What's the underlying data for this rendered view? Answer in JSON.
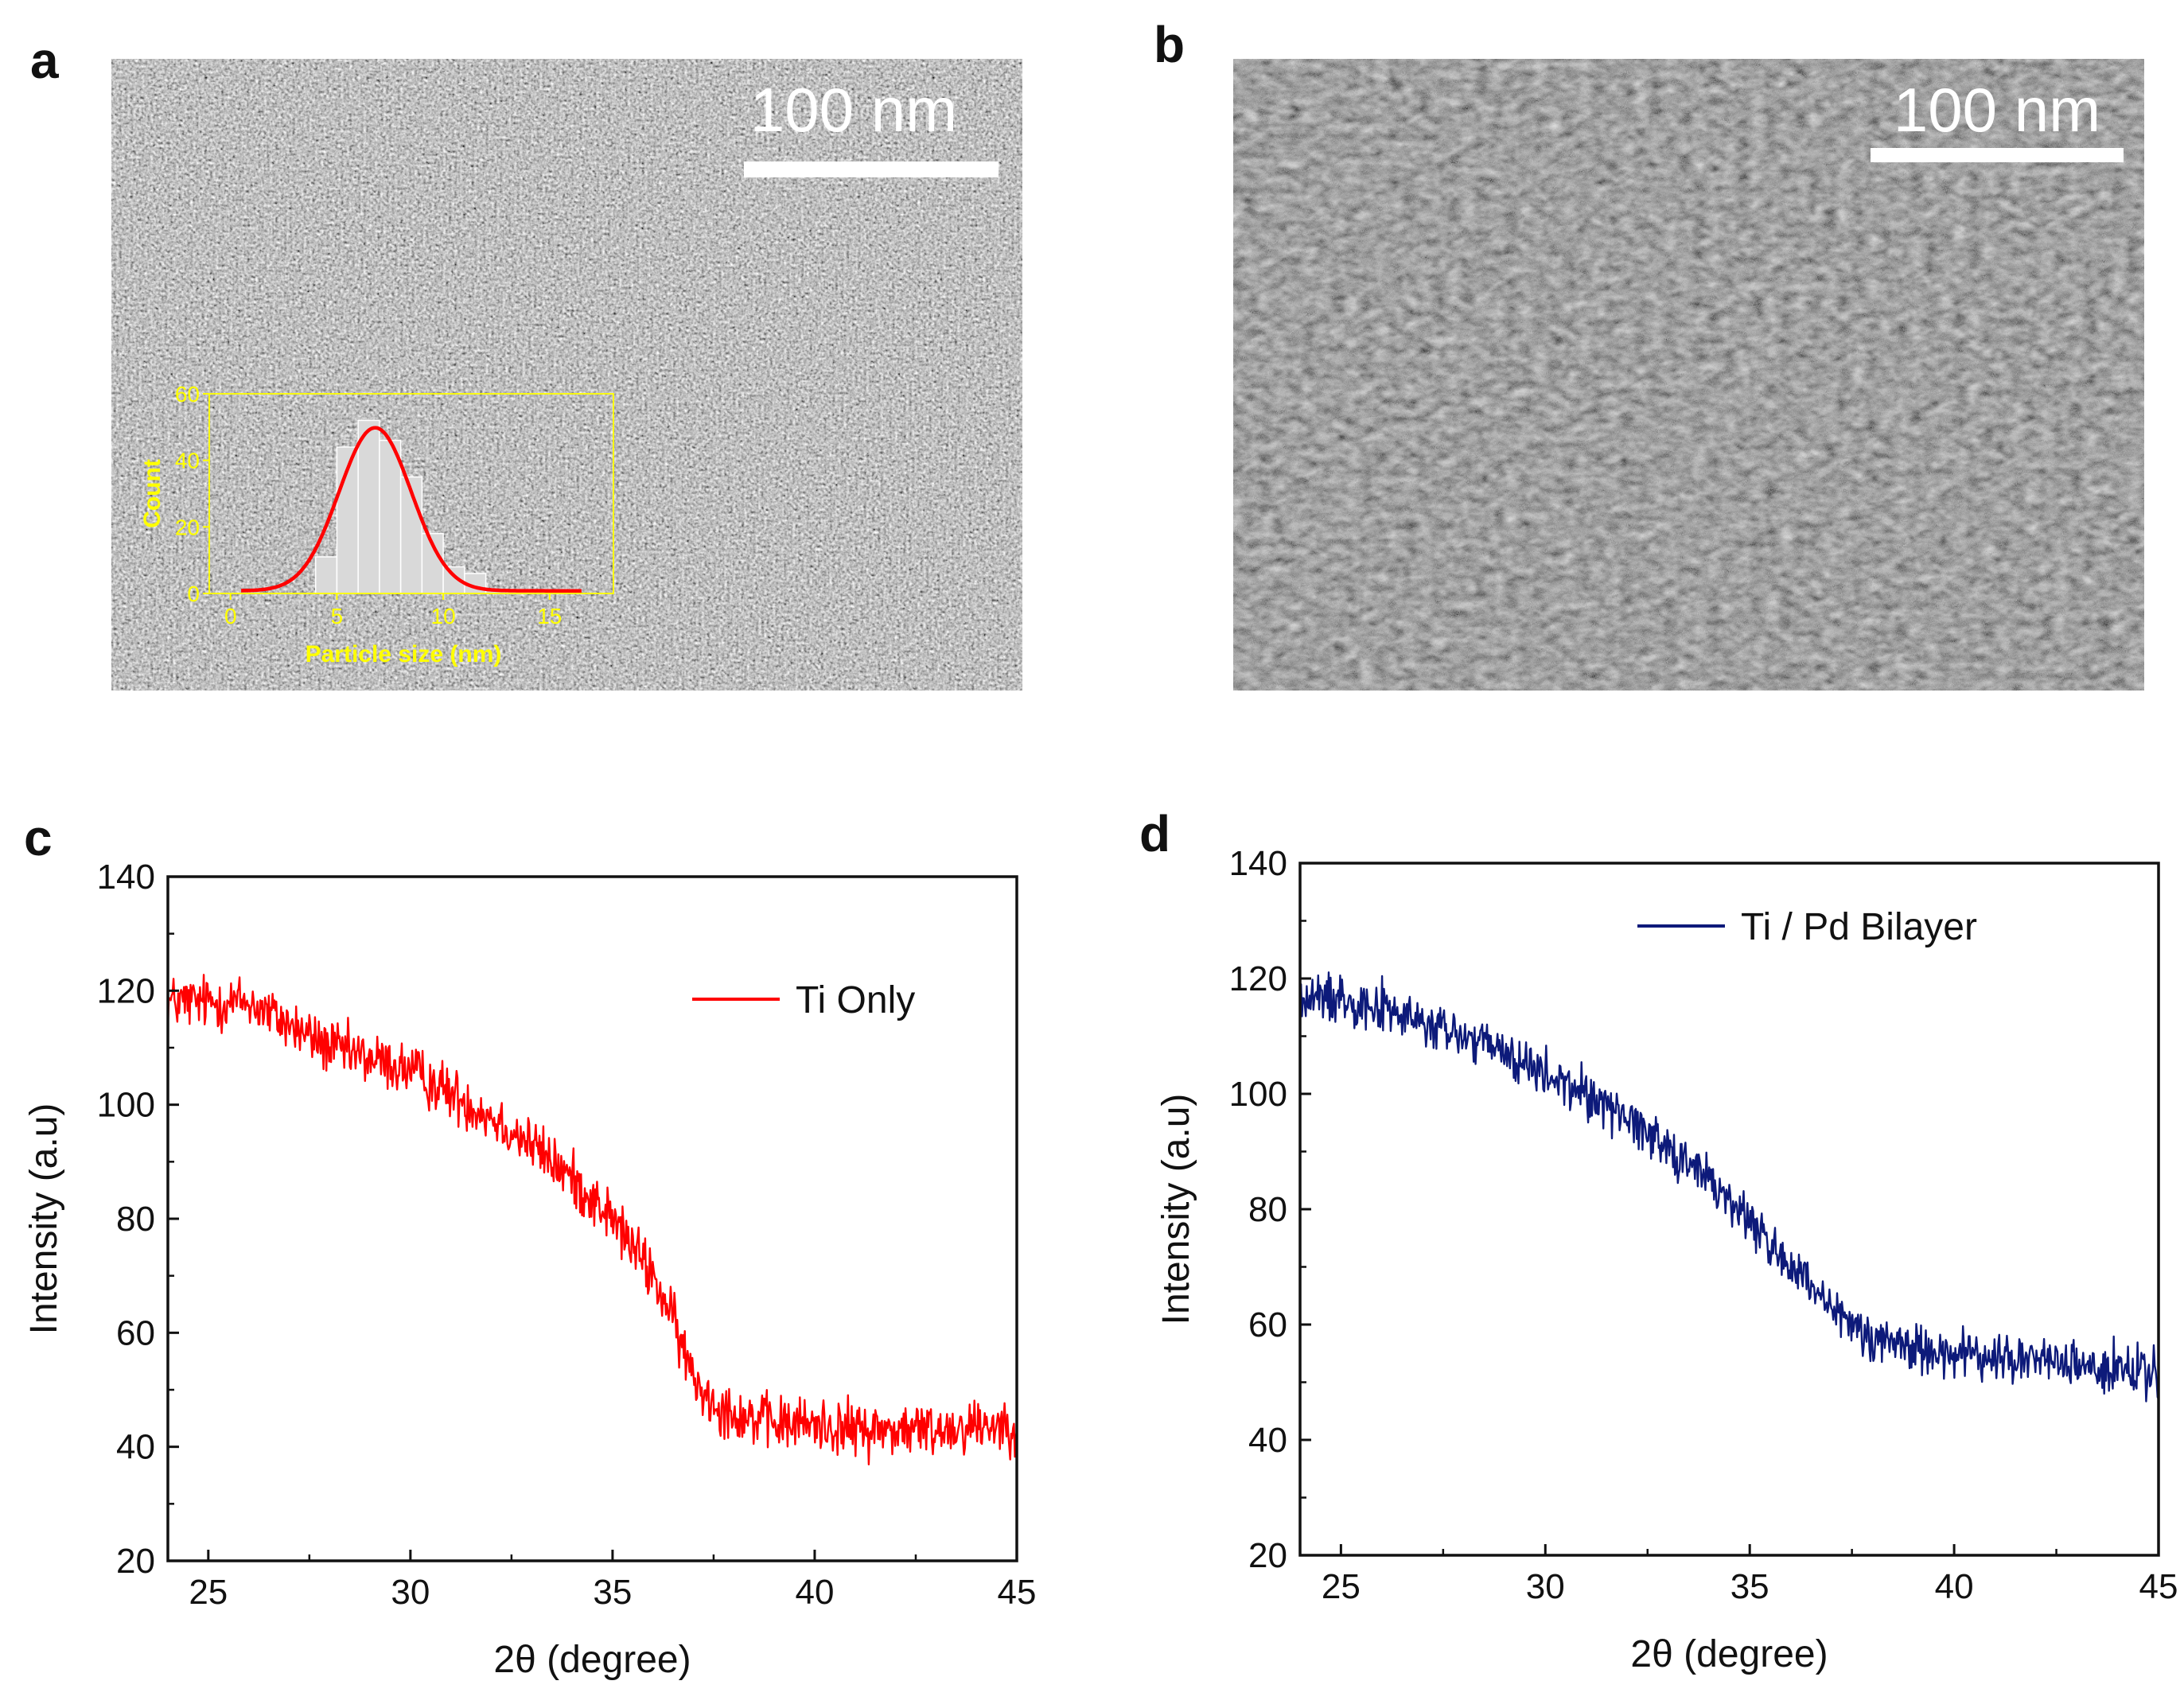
{
  "panels": {
    "a": {
      "letter": "a",
      "scale_bar": "100 nm"
    },
    "b": {
      "letter": "b",
      "scale_bar": "100 nm"
    },
    "c": {
      "letter": "c"
    },
    "d": {
      "letter": "d"
    }
  },
  "chart_data": [
    {
      "id": "inset-a",
      "type": "bar",
      "title": "",
      "xlabel": "Particle size (nm)",
      "ylabel": "Count",
      "xlim": [
        -1,
        18
      ],
      "ylim": [
        0,
        60
      ],
      "xticks": [
        0,
        5,
        10,
        15
      ],
      "yticks": [
        0,
        20,
        40,
        60
      ],
      "bin_centers": [
        4.5,
        5.5,
        6.5,
        7.5,
        8.5,
        9.5,
        10.5,
        11.5,
        12.5,
        13.5
      ],
      "values": [
        11,
        44,
        52,
        46,
        35,
        18,
        8,
        6,
        1,
        1
      ],
      "fit": {
        "type": "gaussian",
        "amplitude": 49,
        "mean": 6.8,
        "sigma": 1.7
      },
      "bar_color": "#d9d9d9",
      "fit_color": "#ff0000",
      "axis_color": "#ffff00"
    },
    {
      "id": "xrd-c",
      "type": "line",
      "xlabel": "2θ (degree)",
      "ylabel": "Intensity (a.u)",
      "xlim": [
        24,
        45
      ],
      "ylim": [
        20,
        140
      ],
      "xticks": [
        25,
        30,
        35,
        40,
        45
      ],
      "yticks": [
        20,
        40,
        60,
        80,
        100,
        120,
        140
      ],
      "legend": "top-right",
      "series": [
        {
          "name": "Ti Only",
          "color": "#ff0000",
          "noise": 4.5,
          "x": [
            24,
            25,
            26,
            27,
            28,
            29,
            30,
            31,
            32,
            33,
            34,
            35,
            36,
            36.5,
            37,
            37.5,
            38,
            39,
            40,
            41,
            42,
            43,
            44,
            45
          ],
          "y": [
            118,
            118,
            118,
            114,
            110,
            108,
            106,
            102,
            98,
            93,
            87,
            80,
            70,
            62,
            52,
            48,
            46,
            44,
            44,
            43,
            43,
            43,
            44,
            44
          ]
        }
      ]
    },
    {
      "id": "xrd-d",
      "type": "line",
      "xlabel": "2θ (degree)",
      "ylabel": "Intensity (a.u)",
      "xlim": [
        24,
        45
      ],
      "ylim": [
        20,
        140
      ],
      "xticks": [
        25,
        30,
        35,
        40,
        45
      ],
      "yticks": [
        20,
        40,
        60,
        80,
        100,
        120,
        140
      ],
      "legend": "top-right",
      "series": [
        {
          "name": "Ti / Pd Bilayer",
          "color": "#0d1a7a",
          "noise": 4,
          "x": [
            24,
            25,
            26,
            27,
            28,
            29,
            30,
            31,
            32,
            33,
            34,
            35,
            36,
            37,
            38,
            39,
            40,
            41,
            42,
            43,
            44,
            45
          ],
          "y": [
            116,
            117,
            115,
            112,
            110,
            107,
            103,
            100,
            96,
            91,
            85,
            78,
            70,
            62,
            58,
            56,
            55,
            54,
            54,
            53,
            52,
            51
          ]
        }
      ]
    }
  ]
}
